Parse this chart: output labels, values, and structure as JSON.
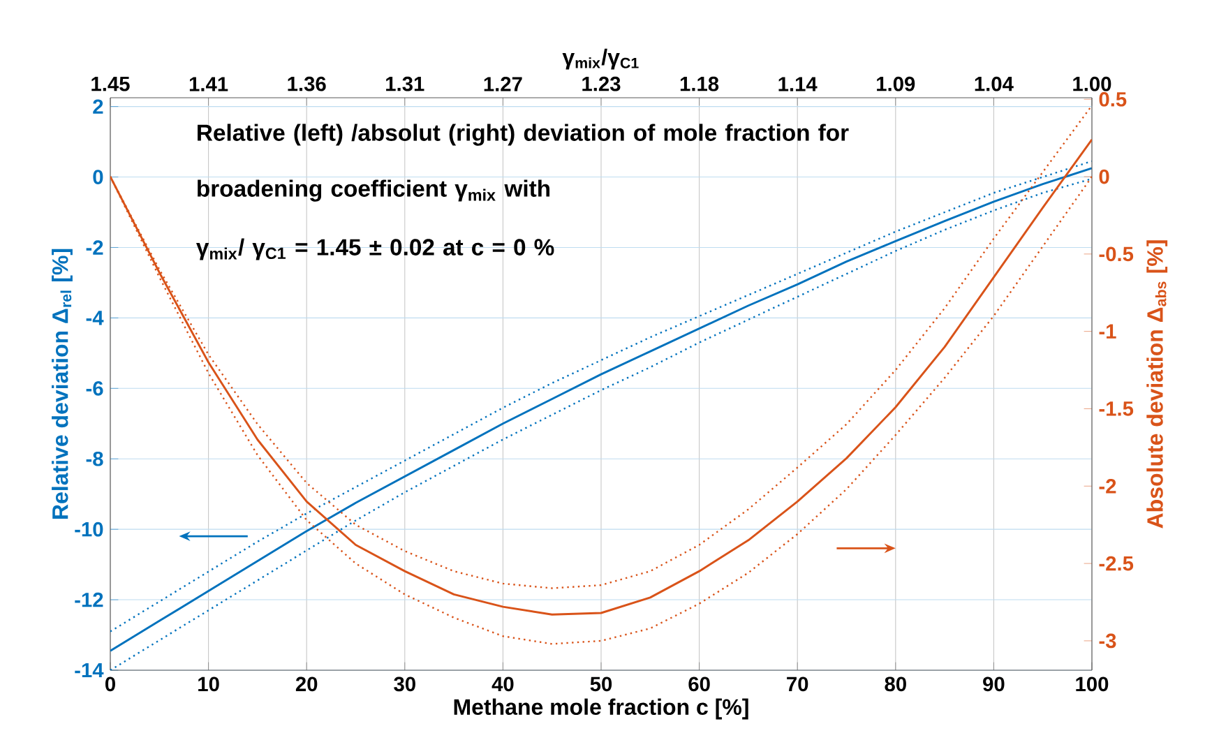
{
  "chart_data": {
    "type": "line",
    "annotations": [
      "Relative (left) /absolut (right) deviation of mole fraction for broadening coefficient γ$_{mix}$ with",
      "γ$_{mix}$/ γ$_{C1}$ = 1.45 ± 0.02   at c = 0 %"
    ],
    "xlabel": "Methane mole fraction c [%]",
    "ylabel": "Relative deviation Δ$_{rel}$ [%]",
    "y2label": "Absolute deviation Δ$_{abs}$ [%]",
    "x2label": "γ$_{mix}$/γ$_{C1}$",
    "x": [
      0,
      5,
      10,
      15,
      20,
      25,
      30,
      35,
      40,
      45,
      50,
      55,
      60,
      65,
      70,
      75,
      80,
      85,
      90,
      95,
      100
    ],
    "xlim": [
      0,
      100
    ],
    "xticks": [
      0,
      10,
      20,
      30,
      40,
      50,
      60,
      70,
      80,
      90,
      100
    ],
    "ylim": [
      -14,
      2.25
    ],
    "yticks": [
      -14,
      -12,
      -10,
      -8,
      -6,
      -4,
      -2,
      0,
      2
    ],
    "y2lim": [
      -3.19,
      0.51
    ],
    "y2ticks": [
      -3,
      -2.5,
      -2,
      -1.5,
      -1,
      -0.5,
      0,
      0.5
    ],
    "x2lim": [
      1.45,
      1.0
    ],
    "x2ticks": [
      1.45,
      {
        "value": 1.405,
        "label": "1.41"
      },
      1.36,
      {
        "value": 1.315,
        "label": "1.31"
      },
      1.27,
      {
        "value": 1.225,
        "label": "1.23"
      },
      1.18,
      {
        "value": 1.135,
        "label": "1.14"
      },
      1.09,
      {
        "value": 1.045,
        "label": "1.04"
      },
      {
        "value": 1.0,
        "label": "1.00"
      }
    ],
    "grid": true,
    "series": [
      {
        "color": "#0072bd",
        "line_style": "solid",
        "values": [
          -13.45,
          -12.6,
          -11.75,
          -10.9,
          -10.05,
          -9.25,
          -8.5,
          -7.75,
          -7.0,
          -6.3,
          -5.6,
          -4.95,
          -4.3,
          -3.65,
          -3.05,
          -2.4,
          -1.82,
          -1.25,
          -0.7,
          -0.2,
          0.25
        ]
      },
      {
        "color": "#0072bd",
        "line_style": "dotted",
        "values": [
          -12.9,
          -12.05,
          -11.2,
          -10.35,
          -9.55,
          -8.8,
          -8.05,
          -7.3,
          -6.55,
          -5.85,
          -5.2,
          -4.55,
          -3.95,
          -3.35,
          -2.75,
          -2.15,
          -1.55,
          -1.0,
          -0.45,
          0.0,
          0.45
        ]
      },
      {
        "color": "#0072bd",
        "line_style": "dotted",
        "values": [
          -14.0,
          -13.15,
          -12.3,
          -11.45,
          -10.6,
          -9.75,
          -8.95,
          -8.2,
          -7.45,
          -6.75,
          -6.05,
          -5.4,
          -4.7,
          -4.05,
          -3.4,
          -2.75,
          -2.1,
          -1.5,
          -0.95,
          -0.45,
          -0.05
        ]
      },
      {
        "color": "#d95319",
        "line_style": "solid",
        "axis": "y2",
        "values": [
          0,
          -0.62,
          -1.2,
          -1.7,
          -2.1,
          -2.38,
          -2.55,
          -2.7,
          -2.78,
          -2.83,
          -2.82,
          -2.72,
          -2.55,
          -2.35,
          -2.1,
          -1.82,
          -1.49,
          -1.1,
          -0.65,
          -0.2,
          0.24
        ]
      },
      {
        "color": "#d95319",
        "line_style": "dotted",
        "axis": "y2",
        "values": [
          0,
          -0.6,
          -1.15,
          -1.6,
          -1.98,
          -2.25,
          -2.42,
          -2.55,
          -2.63,
          -2.66,
          -2.64,
          -2.55,
          -2.38,
          -2.15,
          -1.88,
          -1.6,
          -1.25,
          -0.85,
          -0.4,
          0.03,
          0.46
        ]
      },
      {
        "color": "#d95319",
        "line_style": "dotted",
        "axis": "y2",
        "values": [
          0,
          -0.65,
          -1.27,
          -1.8,
          -2.22,
          -2.5,
          -2.7,
          -2.85,
          -2.97,
          -3.02,
          -3.0,
          -2.92,
          -2.76,
          -2.56,
          -2.31,
          -2.02,
          -1.67,
          -1.3,
          -0.9,
          -0.45,
          0.0
        ]
      }
    ]
  }
}
